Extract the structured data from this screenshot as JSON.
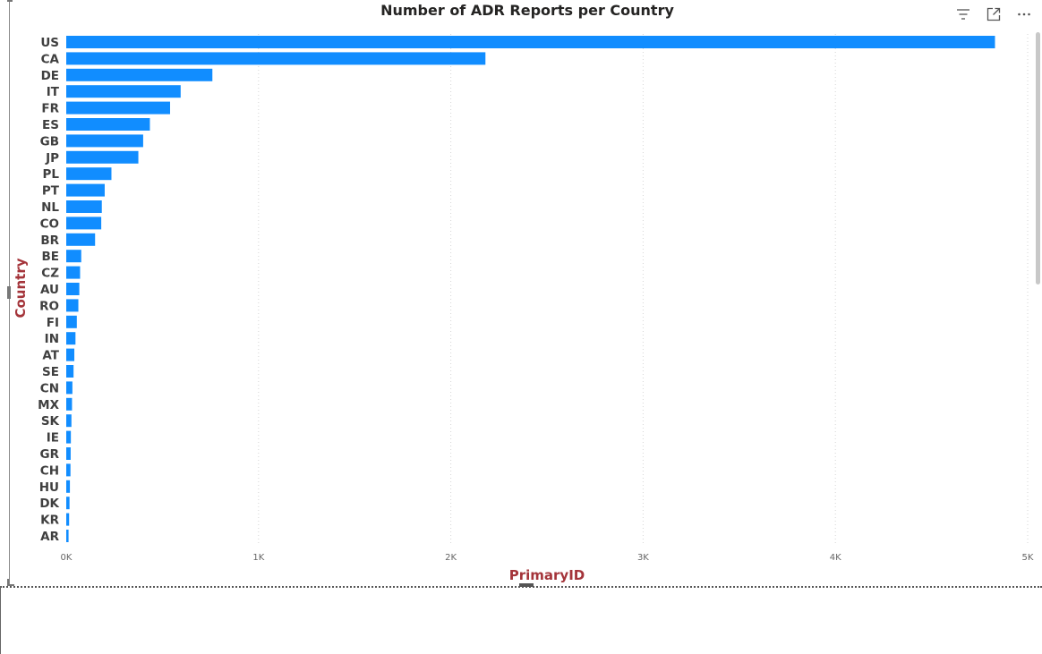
{
  "chart_data": {
    "type": "bar",
    "orientation": "horizontal",
    "title": "Number of ADR Reports per Country",
    "xlabel": "PrimaryID",
    "ylabel": "Country",
    "categories": [
      "US",
      "CA",
      "DE",
      "IT",
      "FR",
      "ES",
      "GB",
      "JP",
      "PL",
      "PT",
      "NL",
      "CO",
      "BR",
      "BE",
      "CZ",
      "AU",
      "RO",
      "FI",
      "IN",
      "AT",
      "SE",
      "CN",
      "MX",
      "SK",
      "IE",
      "GR",
      "CH",
      "HU",
      "DK",
      "KR",
      "AR"
    ],
    "values": [
      4830,
      2180,
      760,
      595,
      540,
      435,
      400,
      375,
      235,
      200,
      185,
      182,
      150,
      78,
      72,
      68,
      63,
      55,
      48,
      42,
      38,
      32,
      30,
      27,
      24,
      23,
      22,
      19,
      17,
      15,
      12
    ],
    "xlim": [
      0,
      5000
    ],
    "x_ticks": [
      0,
      1000,
      2000,
      3000,
      4000,
      5000
    ],
    "x_tick_labels": [
      "0K",
      "1K",
      "2K",
      "3K",
      "4K",
      "5K"
    ],
    "grid": "vertical-dotted",
    "bar_color": "#118DFF",
    "axis_title_color": "#A4343A"
  },
  "header": {
    "filter_icon": "filter-icon",
    "focus_icon": "focus-mode-icon",
    "more_icon": "more-options-icon"
  }
}
